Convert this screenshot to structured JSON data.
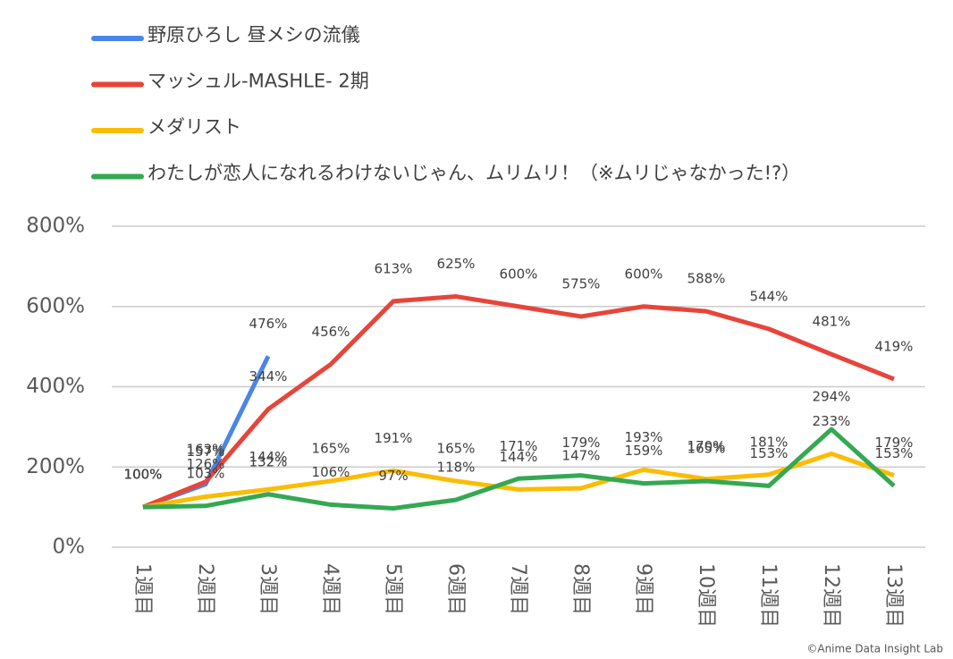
{
  "chart_data": {
    "type": "line",
    "categories": [
      "1週目",
      "2週目",
      "3週目",
      "4週目",
      "5週目",
      "6週目",
      "7週目",
      "8週目",
      "9週目",
      "10週目",
      "11週目",
      "12週目",
      "13週目"
    ],
    "series": [
      {
        "name": "野原ひろし 昼メシの流儀",
        "color": "#4a86e8",
        "values": [
          100,
          157,
          476,
          null,
          null,
          null,
          null,
          null,
          null,
          null,
          null,
          null,
          null
        ],
        "value_labels": [
          "100%",
          "157%",
          "476%",
          null,
          null,
          null,
          null,
          null,
          null,
          null,
          null,
          null,
          null
        ]
      },
      {
        "name": "マッシュル-MASHLE- 2期",
        "color": "#e8443a",
        "values": [
          100,
          163,
          344,
          456,
          613,
          625,
          600,
          575,
          600,
          588,
          544,
          481,
          419
        ],
        "value_labels": [
          "100%",
          "163%",
          "344%",
          "456%",
          "613%",
          "625%",
          "600%",
          "575%",
          "600%",
          "588%",
          "544%",
          "481%",
          "419%"
        ]
      },
      {
        "name": "メダリスト",
        "color": "#fbbc04",
        "values": [
          100,
          126,
          144,
          165,
          191,
          165,
          144,
          147,
          193,
          170,
          181,
          233,
          179
        ],
        "value_labels": [
          "100%",
          "126%",
          "144%",
          "165%",
          "191%",
          "165%",
          "144%",
          "147%",
          "193%",
          "170%",
          "181%",
          "233%",
          "179%"
        ]
      },
      {
        "name": "わたしが恋人になれるわけないじゃん、ムリムリ！（※ムリじゃなかった!?）",
        "color": "#34a853",
        "values": [
          100,
          103,
          132,
          106,
          97,
          118,
          171,
          179,
          159,
          165,
          153,
          294,
          153
        ],
        "value_labels": [
          "100%",
          "103%",
          "132%",
          "106%",
          "97%",
          "118%",
          "171%",
          "179%",
          "159%",
          "165%",
          "153%",
          "294%",
          "153%"
        ]
      }
    ],
    "ylim": [
      0,
      800
    ],
    "yticks": [
      {
        "value": 0,
        "label": "0%"
      },
      {
        "value": 200,
        "label": "200%"
      },
      {
        "value": 400,
        "label": "400%"
      },
      {
        "value": 600,
        "label": "600%"
      },
      {
        "value": 800,
        "label": "800%"
      }
    ],
    "grid": true,
    "legend": "top",
    "watermark": "©Anime Data Insight Lab"
  }
}
